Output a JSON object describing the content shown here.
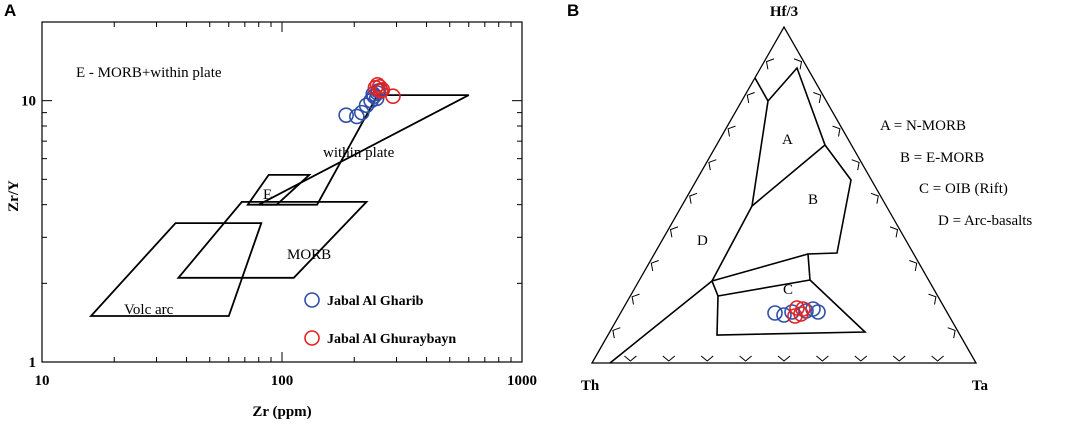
{
  "chart_data": [
    {
      "panel": "A",
      "type": "scatter",
      "xlabel": "Zr (ppm)",
      "ylabel": "Zr/Y",
      "xscale": "log",
      "yscale": "log",
      "xlim": [
        10,
        1000
      ],
      "ylim": [
        1,
        20
      ],
      "xticks": [
        "10",
        "100",
        "1000"
      ],
      "yticks": [
        "1",
        "10"
      ],
      "annotation": "E - MORB+within plate",
      "fields": [
        {
          "label": "within plate",
          "polygon": [
            [
              80,
              4
            ],
            [
              600,
              10.5
            ],
            [
              250,
              10.5
            ],
            [
              140,
              4
            ]
          ]
        },
        {
          "label": "E",
          "polygon": [
            [
              72,
              4
            ],
            [
              88,
              5.2
            ],
            [
              130,
              5.2
            ],
            [
              95,
              4
            ]
          ]
        },
        {
          "label": "MORB",
          "polygon": [
            [
              37,
              2.1
            ],
            [
              68,
              4.1
            ],
            [
              225,
              4.1
            ],
            [
              112,
              2.1
            ]
          ]
        },
        {
          "label": "Volc arc",
          "polygon": [
            [
              16,
              1.5
            ],
            [
              36,
              3.4
            ],
            [
              82,
              3.4
            ],
            [
              60,
              1.5
            ]
          ]
        }
      ],
      "legend": {
        "position": "bottom-right"
      },
      "series": [
        {
          "name": "Jabal Al Gharib",
          "color": "#2f4fa8",
          "x": [
            185,
            205,
            215,
            225,
            235,
            242,
            250,
            252,
            248,
            240
          ],
          "y": [
            8.8,
            8.7,
            9.0,
            9.6,
            10.0,
            10.4,
            10.7,
            10.9,
            10.2,
            10.6
          ]
        },
        {
          "name": "Jabal Al Ghuraybayn",
          "color": "#e02424",
          "x": [
            245,
            250,
            255,
            258,
            262,
            290
          ],
          "y": [
            11.2,
            11.5,
            11.3,
            10.9,
            11.0,
            10.4
          ]
        }
      ]
    },
    {
      "panel": "B",
      "type": "ternary",
      "apex_top": "Hf/3",
      "apex_left": "Th",
      "apex_right": "Ta",
      "field_labels": [
        "A",
        "B",
        "C",
        "D"
      ],
      "legend_entries": [
        "A = N-MORB",
        "B = E-MORB",
        "C = OIB (Rift)",
        "D = Arc-basalts"
      ]
    }
  ],
  "colors": {
    "axis": "#000000",
    "gharib": "#2f4fa8",
    "ghuraybayn": "#e02424"
  }
}
